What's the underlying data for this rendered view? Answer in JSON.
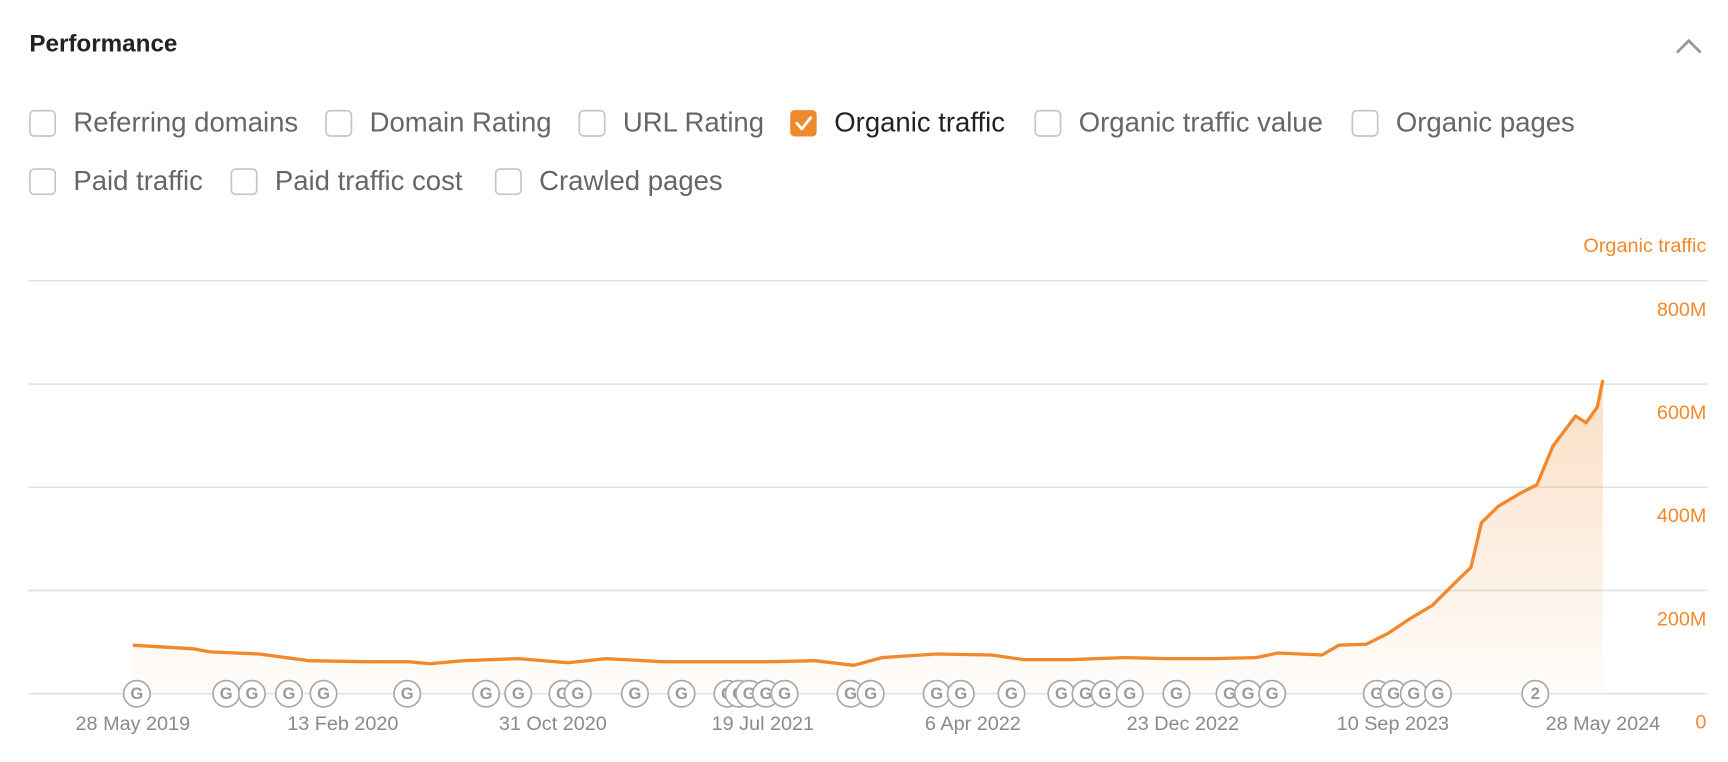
{
  "header": {
    "title": "Performance"
  },
  "metrics": [
    {
      "label": "Referring domains",
      "checked": false
    },
    {
      "label": "Domain Rating",
      "checked": false
    },
    {
      "label": "URL Rating",
      "checked": false
    },
    {
      "label": "Organic traffic",
      "checked": true
    },
    {
      "label": "Organic traffic value",
      "checked": false
    },
    {
      "label": "Organic pages",
      "checked": false
    },
    {
      "label": "Paid traffic",
      "checked": false
    },
    {
      "label": "Paid traffic cost",
      "checked": false
    },
    {
      "label": "Crawled pages",
      "checked": false
    }
  ],
  "chart_data": {
    "type": "line",
    "x": [
      "2019-05-28",
      "2019-08-11",
      "2019-09-01",
      "2019-11-01",
      "2020-01-02",
      "2020-03-10",
      "2020-05-04",
      "2020-05-31",
      "2020-07-12",
      "2020-09-18",
      "2020-11-19",
      "2021-01-05",
      "2021-03-15",
      "2021-05-22",
      "2021-07-30",
      "2021-09-22",
      "2021-11-09",
      "2021-12-14",
      "2022-02-20",
      "2022-04-29",
      "2022-06-09",
      "2022-08-03",
      "2022-10-11",
      "2022-12-04",
      "2023-01-28",
      "2023-03-24",
      "2023-04-20",
      "2023-06-14",
      "2023-07-05",
      "2023-08-08",
      "2023-09-04",
      "2023-10-01",
      "2023-10-29",
      "2023-11-25",
      "2023-12-16",
      "2023-12-29",
      "2024-01-19",
      "2024-02-15",
      "2024-03-07",
      "2024-03-27",
      "2024-04-24",
      "2024-05-07",
      "2024-05-21",
      "2024-05-28"
    ],
    "series": [
      {
        "name": "Organic traffic",
        "color": "#f0892b",
        "values": [
          94000000,
          87000000,
          81000000,
          77000000,
          64000000,
          62000000,
          62000000,
          58000000,
          64000000,
          68000000,
          60000000,
          68000000,
          62000000,
          62000000,
          62000000,
          64000000,
          55000000,
          70000000,
          77000000,
          75000000,
          66000000,
          66000000,
          70000000,
          68000000,
          68000000,
          70000000,
          79000000,
          75000000,
          94000000,
          96000000,
          117000000,
          145000000,
          171000000,
          213000000,
          245000000,
          331000000,
          363000000,
          388000000,
          405000000,
          480000000,
          538000000,
          525000000,
          555000000,
          608000000
        ]
      }
    ],
    "xlim": [
      "2019-01-18",
      "2024-10-05"
    ],
    "ylim": [
      0,
      800000000
    ],
    "xticks": [
      {
        "value": "2019-05-28",
        "label": "28 May 2019"
      },
      {
        "value": "2020-02-13",
        "label": "13 Feb 2020"
      },
      {
        "value": "2020-10-31",
        "label": "31 Oct 2020"
      },
      {
        "value": "2021-07-19",
        "label": "19 Jul 2021"
      },
      {
        "value": "2022-04-06",
        "label": "6 Apr 2022"
      },
      {
        "value": "2022-12-23",
        "label": "23 Dec 2022"
      },
      {
        "value": "2023-09-10",
        "label": "10 Sep 2023"
      },
      {
        "value": "2024-05-28",
        "label": "28 May 2024"
      }
    ],
    "yticks": [
      0,
      {
        "value": 200000000,
        "label": "200M"
      },
      {
        "value": 400000000,
        "label": "400M"
      },
      {
        "value": 600000000,
        "label": "600M"
      },
      {
        "value": 800000000,
        "label": "800M"
      }
    ],
    "grid": true,
    "events": [
      {
        "x": "2019-06-02",
        "label": "G"
      },
      {
        "x": "2019-09-21",
        "label": "G"
      },
      {
        "x": "2019-10-23",
        "label": "G"
      },
      {
        "x": "2019-12-08",
        "label": "G"
      },
      {
        "x": "2020-01-20",
        "label": "G"
      },
      {
        "x": "2020-05-03",
        "label": "G"
      },
      {
        "x": "2020-08-09",
        "label": "G"
      },
      {
        "x": "2020-09-18",
        "label": "G"
      },
      {
        "x": "2020-11-12",
        "label": "G"
      },
      {
        "x": "2020-12-01",
        "label": "G"
      },
      {
        "x": "2021-02-10",
        "label": "G"
      },
      {
        "x": "2021-04-09",
        "label": "G"
      },
      {
        "x": "2021-06-05",
        "label": "G"
      },
      {
        "x": "2021-06-19",
        "label": "G"
      },
      {
        "x": "2021-07-02",
        "label": "G"
      },
      {
        "x": "2021-07-23",
        "label": "G"
      },
      {
        "x": "2021-08-15",
        "label": "G"
      },
      {
        "x": "2021-11-05",
        "label": "G"
      },
      {
        "x": "2021-11-30",
        "label": "G"
      },
      {
        "x": "2022-02-20",
        "label": "G"
      },
      {
        "x": "2022-03-22",
        "label": "G"
      },
      {
        "x": "2022-05-24",
        "label": "G"
      },
      {
        "x": "2022-07-25",
        "label": "G"
      },
      {
        "x": "2022-08-24",
        "label": "G"
      },
      {
        "x": "2022-09-17",
        "label": "G"
      },
      {
        "x": "2022-10-18",
        "label": "G"
      },
      {
        "x": "2022-12-15",
        "label": "G"
      },
      {
        "x": "2023-02-19",
        "label": "G"
      },
      {
        "x": "2023-03-14",
        "label": "G"
      },
      {
        "x": "2023-04-13",
        "label": "G"
      },
      {
        "x": "2023-08-21",
        "label": "G"
      },
      {
        "x": "2023-09-11",
        "label": "G"
      },
      {
        "x": "2023-10-06",
        "label": "G"
      },
      {
        "x": "2023-11-05",
        "label": "G"
      },
      {
        "x": "2024-03-05",
        "label": "2"
      }
    ]
  }
}
